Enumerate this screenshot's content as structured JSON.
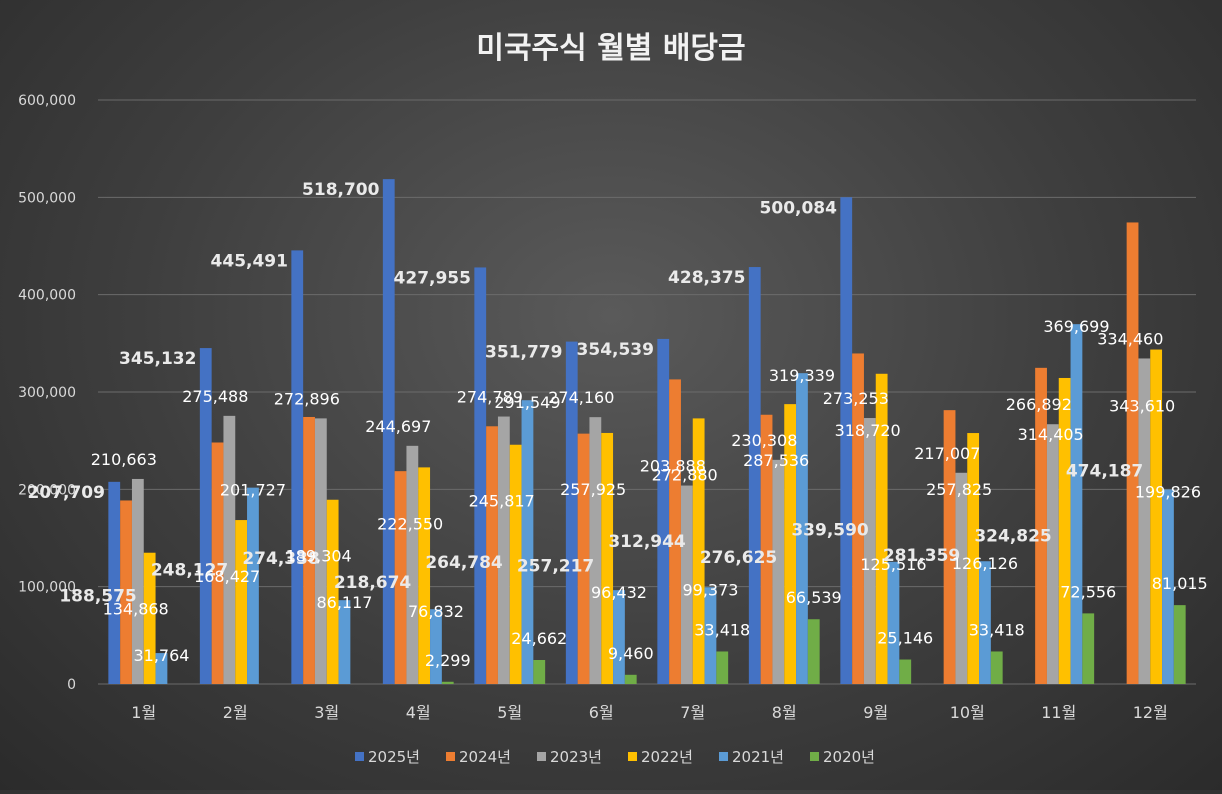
{
  "chart_data": {
    "type": "bar",
    "title": "미국주식 월별 배당금",
    "categories": [
      "1월",
      "2월",
      "3월",
      "4월",
      "5월",
      "6월",
      "7월",
      "8월",
      "9월",
      "10월",
      "11월",
      "12월"
    ],
    "ylim": [
      0,
      600000
    ],
    "yticks": [
      "0",
      "100,000",
      "200,000",
      "300,000",
      "400,000",
      "500,000",
      "600,000"
    ],
    "series": [
      {
        "name": "2025년",
        "color": "#4472c4",
        "values": [
          207709,
          345132,
          445491,
          518700,
          427955,
          351779,
          354539,
          428375,
          500084,
          null,
          null,
          null
        ],
        "labels": [
          "207,709",
          "345,132",
          "445,491",
          "518,700",
          "427,955",
          "351,779",
          "354,539",
          "428,375",
          "500,084",
          "",
          "",
          ""
        ]
      },
      {
        "name": "2024년",
        "color": "#ed7d31",
        "values": [
          188575,
          248127,
          274338,
          218674,
          264784,
          257217,
          312944,
          276625,
          339590,
          281359,
          324825,
          474187
        ],
        "labels": [
          "188,575",
          "248,127",
          "274,338",
          "218,674",
          "264,784",
          "257,217",
          "312,944",
          "276,625",
          "339,590",
          "281,359",
          "324,825",
          "474,187"
        ]
      },
      {
        "name": "2023년",
        "color": "#a5a5a5",
        "values": [
          210663,
          275488,
          272896,
          244697,
          274789,
          274160,
          203888,
          230308,
          273253,
          217007,
          266892,
          334460
        ],
        "labels": [
          "210,663",
          "275,488",
          "272,896",
          "244,697",
          "274,789",
          "274,160",
          "203,888",
          "230,308",
          "273,253",
          "217,007",
          "266,892",
          "334,460"
        ]
      },
      {
        "name": "2022년",
        "color": "#ffc000",
        "values": [
          134868,
          168427,
          189304,
          222550,
          245817,
          257925,
          272880,
          287536,
          318720,
          257825,
          314405,
          343610
        ],
        "labels": [
          "134,868",
          "168,427",
          "189,304",
          "222,550",
          "245,817",
          "257,925",
          "272,880",
          "287,536",
          "318,720",
          "257,825",
          "314,405",
          "343,610"
        ]
      },
      {
        "name": "2021년",
        "color": "#5b9bd5",
        "values": [
          31764,
          201727,
          86117,
          76832,
          291549,
          96432,
          99373,
          319339,
          125516,
          126126,
          369699,
          199826
        ],
        "labels": [
          "31,764",
          "201,727",
          "86,117",
          "76,832",
          "291,549",
          "96,432",
          "99,373",
          "319,339",
          "125,516",
          "126,126",
          "369,699",
          "199,826"
        ]
      },
      {
        "name": "2020년",
        "color": "#70ad47",
        "values": [
          null,
          null,
          null,
          2299,
          24662,
          9460,
          33418,
          66539,
          25146,
          33418,
          72556,
          81015
        ],
        "labels": [
          "",
          "",
          "",
          "2,299",
          "24,662",
          "9,460",
          "33,418",
          "66,539",
          "25,146",
          "33,418",
          "72,556",
          "81,015"
        ]
      }
    ],
    "legend_position": "bottom"
  }
}
